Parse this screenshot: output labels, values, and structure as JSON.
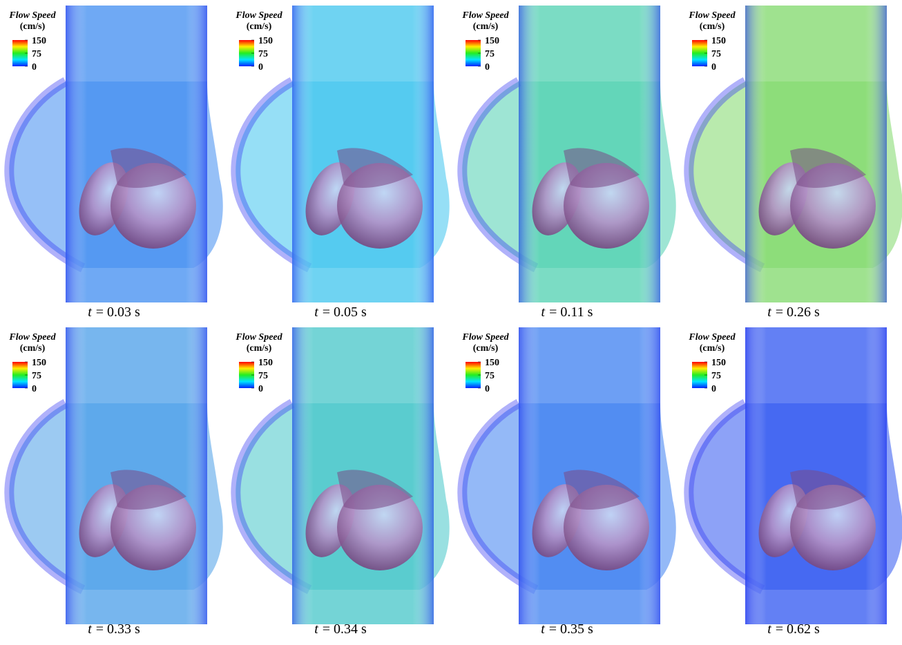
{
  "colorbar": {
    "title": "Flow Speed",
    "unit": "(cm/s)",
    "range": [
      0,
      150
    ],
    "ticks": [
      150,
      75,
      0
    ]
  },
  "panels": [
    {
      "symbol": "t",
      "time": "= 0.03 s",
      "fluid_color": "#3f8cf0"
    },
    {
      "symbol": "t",
      "time": "= 0.05 s",
      "fluid_color": "#3fc4ee"
    },
    {
      "symbol": "t",
      "time": "= 0.11 s",
      "fluid_color": "#4fd0b0"
    },
    {
      "symbol": "t",
      "time": "= 0.26 s",
      "fluid_color": "#7fd86a"
    },
    {
      "symbol": "t",
      "time": "= 0.33 s",
      "fluid_color": "#4a9ee8"
    },
    {
      "symbol": "t",
      "time": "= 0.34 s",
      "fluid_color": "#45c6c8"
    },
    {
      "symbol": "t",
      "time": "= 0.35 s",
      "fluid_color": "#3c7ff0"
    },
    {
      "symbol": "t",
      "time": "= 0.62 s",
      "fluid_color": "#2f55f0"
    }
  ]
}
